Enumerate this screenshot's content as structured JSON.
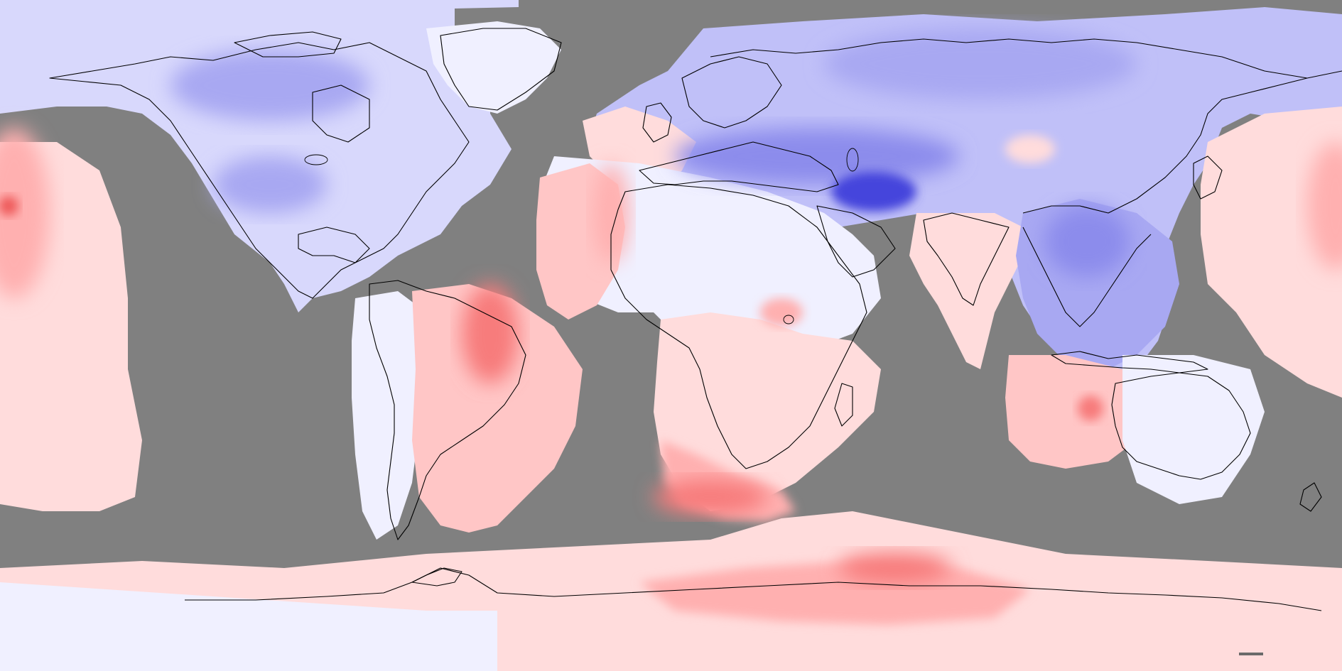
{
  "map": {
    "kind": "global-anomaly-field",
    "projection": "equirectangular",
    "missing_data_color": "#808080",
    "cold_colors": [
      "#f0f0ff",
      "#d8d8fc",
      "#c0c0f8",
      "#a8a8f2",
      "#8c8cec",
      "#6e6ee6",
      "#4444dc"
    ],
    "warm_colors": [
      "#fff0f0",
      "#ffdcdc",
      "#ffc6c6",
      "#ffb0b0",
      "#ff9a9a",
      "#f77c7c",
      "#ee5a5a"
    ],
    "coastline_color": "#000000"
  }
}
